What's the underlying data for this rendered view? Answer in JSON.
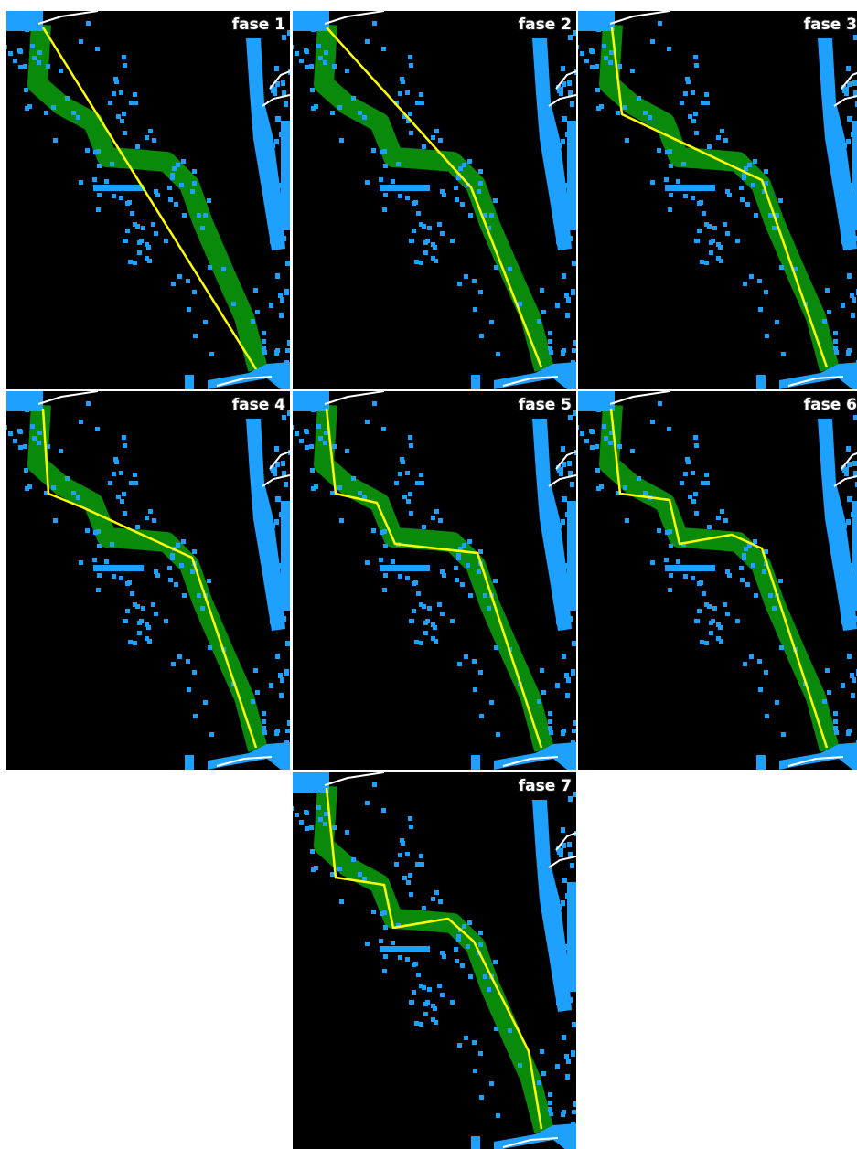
{
  "panels": [
    {
      "label": "fase 1"
    },
    {
      "label": "fase 2"
    },
    {
      "label": "fase 3"
    },
    {
      "label": "fase 4"
    },
    {
      "label": "fase 5"
    },
    {
      "label": "fase 6"
    },
    {
      "label": "fase 7"
    }
  ]
}
